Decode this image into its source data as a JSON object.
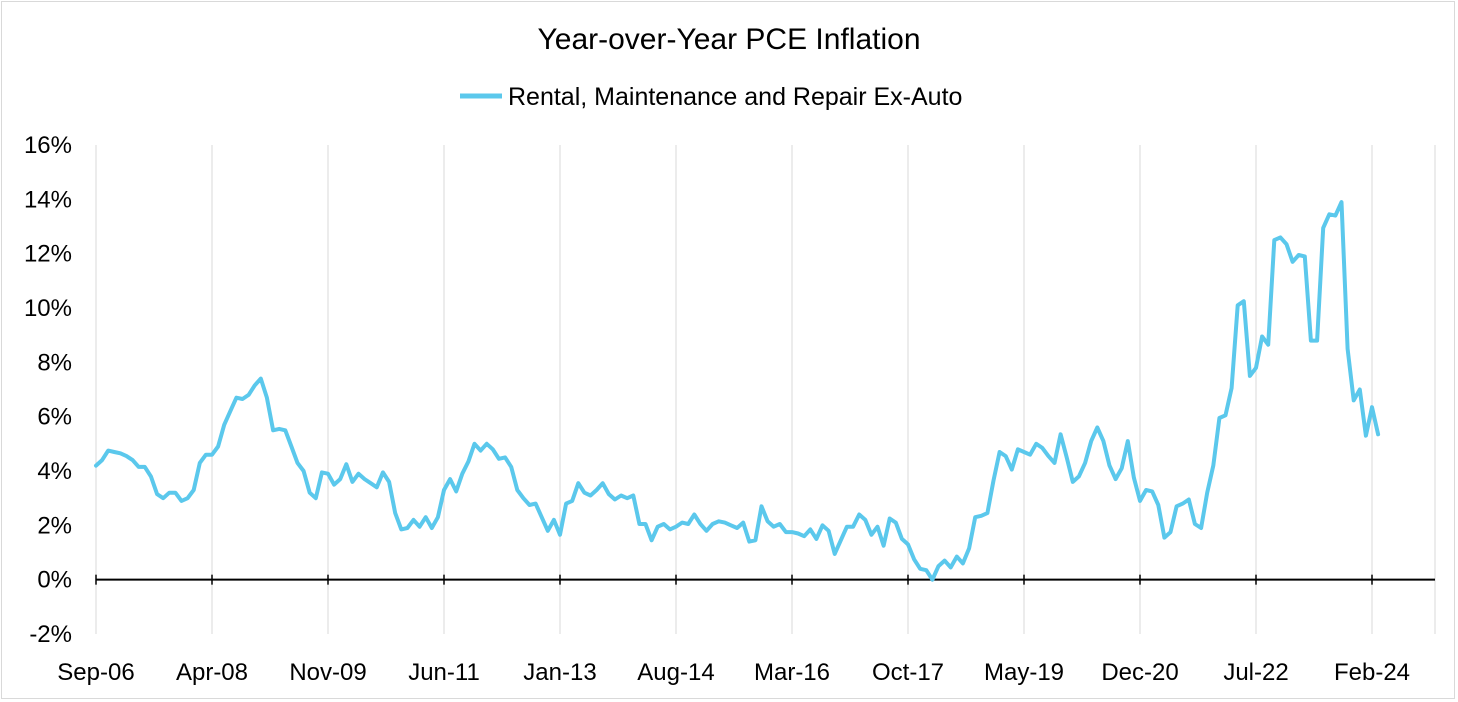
{
  "chart_data": {
    "type": "line",
    "title": "Year-over-Year PCE Inflation",
    "xlabel": "",
    "ylabel": "",
    "ylim": [
      -2,
      16
    ],
    "y_ticks": [
      -2,
      0,
      2,
      4,
      6,
      8,
      10,
      12,
      14,
      16
    ],
    "y_tick_labels": [
      "-2%",
      "0%",
      "2%",
      "4%",
      "6%",
      "8%",
      "10%",
      "12%",
      "14%",
      "16%"
    ],
    "x_ticks": [
      "2006-09",
      "2008-04",
      "2009-11",
      "2011-06",
      "2013-01",
      "2014-08",
      "2016-03",
      "2017-10",
      "2019-05",
      "2020-12",
      "2022-07",
      "2024-02"
    ],
    "x_tick_labels": [
      "Sep-06",
      "Apr-08",
      "Nov-09",
      "Jun-11",
      "Jan-13",
      "Aug-14",
      "Mar-16",
      "Oct-17",
      "May-19",
      "Dec-20",
      "Jul-22",
      "Feb-24"
    ],
    "grid": "vertical",
    "legend_position": "top",
    "series_color": "#5bc8ec",
    "series": [
      {
        "name": "Rental, Maintenance and Repair Ex-Auto",
        "x": [
          "2006-09",
          "2006-10",
          "2006-11",
          "2006-12",
          "2007-01",
          "2007-02",
          "2007-03",
          "2007-04",
          "2007-05",
          "2007-06",
          "2007-07",
          "2007-08",
          "2007-09",
          "2007-10",
          "2007-11",
          "2007-12",
          "2008-01",
          "2008-02",
          "2008-03",
          "2008-04",
          "2008-05",
          "2008-06",
          "2008-07",
          "2008-08",
          "2008-09",
          "2008-10",
          "2008-11",
          "2008-12",
          "2009-01",
          "2009-02",
          "2009-03",
          "2009-04",
          "2009-05",
          "2009-06",
          "2009-07",
          "2009-08",
          "2009-09",
          "2009-10",
          "2009-11",
          "2009-12",
          "2010-01",
          "2010-02",
          "2010-03",
          "2010-04",
          "2010-05",
          "2010-06",
          "2010-07",
          "2010-08",
          "2010-09",
          "2010-10",
          "2010-11",
          "2010-12",
          "2011-01",
          "2011-02",
          "2011-03",
          "2011-04",
          "2011-05",
          "2011-06",
          "2011-07",
          "2011-08",
          "2011-09",
          "2011-10",
          "2011-11",
          "2011-12",
          "2012-01",
          "2012-02",
          "2012-03",
          "2012-04",
          "2012-05",
          "2012-06",
          "2012-07",
          "2012-08",
          "2012-09",
          "2012-10",
          "2012-11",
          "2012-12",
          "2013-01",
          "2013-02",
          "2013-03",
          "2013-04",
          "2013-05",
          "2013-06",
          "2013-07",
          "2013-08",
          "2013-09",
          "2013-10",
          "2013-11",
          "2013-12",
          "2014-01",
          "2014-02",
          "2014-03",
          "2014-04",
          "2014-05",
          "2014-06",
          "2014-07",
          "2014-08",
          "2014-09",
          "2014-10",
          "2014-11",
          "2014-12",
          "2015-01",
          "2015-02",
          "2015-03",
          "2015-04",
          "2015-05",
          "2015-06",
          "2015-07",
          "2015-08",
          "2015-09",
          "2015-10",
          "2015-11",
          "2015-12",
          "2016-01",
          "2016-02",
          "2016-03",
          "2016-04",
          "2016-05",
          "2016-06",
          "2016-07",
          "2016-08",
          "2016-09",
          "2016-10",
          "2016-11",
          "2016-12",
          "2017-01",
          "2017-02",
          "2017-03",
          "2017-04",
          "2017-05",
          "2017-06",
          "2017-07",
          "2017-08",
          "2017-09",
          "2017-10",
          "2017-11",
          "2017-12",
          "2018-01",
          "2018-02",
          "2018-03",
          "2018-04",
          "2018-05",
          "2018-06",
          "2018-07",
          "2018-08",
          "2018-09",
          "2018-10",
          "2018-11",
          "2018-12",
          "2019-01",
          "2019-02",
          "2019-03",
          "2019-04",
          "2019-05",
          "2019-06",
          "2019-07",
          "2019-08",
          "2019-09",
          "2019-10",
          "2019-11",
          "2019-12",
          "2020-01",
          "2020-02",
          "2020-03",
          "2020-04",
          "2020-05",
          "2020-06",
          "2020-07",
          "2020-08",
          "2020-09",
          "2020-10",
          "2020-11",
          "2020-12",
          "2021-01",
          "2021-02",
          "2021-03",
          "2021-04",
          "2021-05",
          "2021-06",
          "2021-07",
          "2021-08",
          "2021-09",
          "2021-10",
          "2021-11",
          "2021-12",
          "2022-01",
          "2022-02",
          "2022-03",
          "2022-04",
          "2022-05",
          "2022-06",
          "2022-07",
          "2022-08",
          "2022-09",
          "2022-10",
          "2022-11",
          "2022-12",
          "2023-01",
          "2023-02",
          "2023-03",
          "2023-04",
          "2023-05",
          "2023-06",
          "2023-07",
          "2023-08",
          "2023-09",
          "2023-10",
          "2023-11",
          "2023-12",
          "2024-01",
          "2024-02",
          "2024-03"
        ],
        "y": [
          4.2,
          4.4,
          4.75,
          4.7,
          4.65,
          4.55,
          4.4,
          4.15,
          4.15,
          3.8,
          3.15,
          3.0,
          3.2,
          3.2,
          2.9,
          3.0,
          3.3,
          4.3,
          4.6,
          4.6,
          4.9,
          5.7,
          6.2,
          6.7,
          6.65,
          6.8,
          7.15,
          7.4,
          6.7,
          5.5,
          5.55,
          5.5,
          4.9,
          4.3,
          4.0,
          3.2,
          3.0,
          3.95,
          3.9,
          3.5,
          3.7,
          4.25,
          3.6,
          3.9,
          3.7,
          3.55,
          3.4,
          3.95,
          3.6,
          2.45,
          1.85,
          1.9,
          2.2,
          1.95,
          2.3,
          1.9,
          2.3,
          3.3,
          3.7,
          3.25,
          3.9,
          4.35,
          5.0,
          4.75,
          5.0,
          4.8,
          4.45,
          4.5,
          4.15,
          3.3,
          3.0,
          2.75,
          2.8,
          2.3,
          1.8,
          2.2,
          1.65,
          2.8,
          2.9,
          3.55,
          3.2,
          3.1,
          3.3,
          3.55,
          3.15,
          2.95,
          3.1,
          3.0,
          3.1,
          2.05,
          2.05,
          1.45,
          1.95,
          2.05,
          1.85,
          1.95,
          2.1,
          2.05,
          2.4,
          2.05,
          1.8,
          2.05,
          2.15,
          2.1,
          2.0,
          1.9,
          2.1,
          1.4,
          1.45,
          2.7,
          2.15,
          1.95,
          2.05,
          1.75,
          1.75,
          1.7,
          1.6,
          1.85,
          1.5,
          2.0,
          1.8,
          0.95,
          1.45,
          1.95,
          1.95,
          2.4,
          2.2,
          1.65,
          1.95,
          1.25,
          2.25,
          2.1,
          1.5,
          1.3,
          0.75,
          0.4,
          0.35,
          0.0,
          0.5,
          0.7,
          0.45,
          0.85,
          0.6,
          1.15,
          2.3,
          2.35,
          2.45,
          3.65,
          4.7,
          4.55,
          4.05,
          4.8,
          4.7,
          4.6,
          5.0,
          4.85,
          4.55,
          4.3,
          5.35,
          4.5,
          3.6,
          3.8,
          4.3,
          5.1,
          5.6,
          5.1,
          4.2,
          3.7,
          4.1,
          5.1,
          3.75,
          2.9,
          3.3,
          3.25,
          2.75,
          1.55,
          1.75,
          2.7,
          2.8,
          2.95,
          2.05,
          1.9,
          3.2,
          4.2,
          5.95,
          6.05,
          7.05,
          10.1,
          10.25,
          7.5,
          7.8,
          8.95,
          8.65,
          12.5,
          12.6,
          12.35,
          11.7,
          11.95,
          11.9,
          8.8,
          8.8,
          12.95,
          13.45,
          13.4,
          13.9,
          8.5,
          6.6,
          7.0,
          5.3,
          6.35,
          5.35
        ]
      }
    ]
  }
}
